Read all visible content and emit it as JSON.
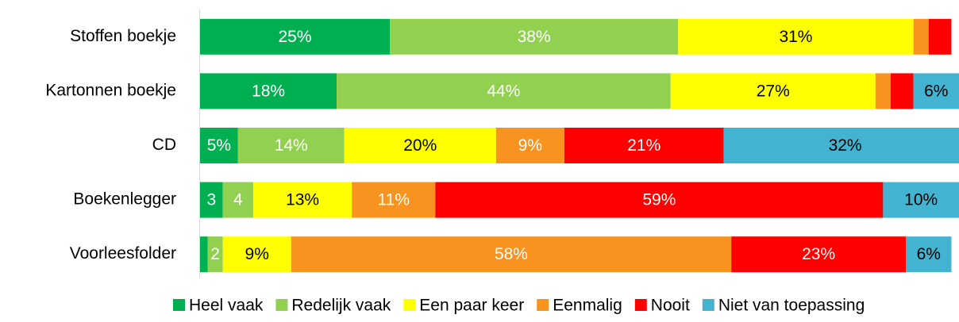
{
  "chart_data": {
    "type": "stacked-bar-horizontal",
    "categories": [
      "Stoffen boekje",
      "Kartonnen boekje",
      "CD",
      "Boekenlegger",
      "Voorleesfolder"
    ],
    "xlim": [
      0,
      100
    ],
    "legend": "bottom",
    "series": [
      {
        "name": "Heel vaak",
        "color": "#00b050",
        "label_color": "#ffffff",
        "values": [
          25,
          18,
          5,
          3,
          1
        ],
        "value_labels": [
          "25%",
          "18%",
          "5%",
          "3",
          null
        ]
      },
      {
        "name": "Redelijk vaak",
        "color": "#92d050",
        "label_color": "#ffffff",
        "values": [
          38,
          44,
          14,
          4,
          2
        ],
        "value_labels": [
          "38%",
          "44%",
          "14%",
          "4",
          "2"
        ]
      },
      {
        "name": "Een paar keer",
        "color": "#ffff00",
        "label_color": "#000000",
        "values": [
          31,
          27,
          20,
          13,
          9
        ],
        "value_labels": [
          "31%",
          "27%",
          "20%",
          "13%",
          "9%"
        ]
      },
      {
        "name": "Eenmalig",
        "color": "#f7931e",
        "label_color": "#ffffff",
        "values": [
          2,
          2,
          9,
          11,
          58
        ],
        "value_labels": [
          null,
          null,
          "9%",
          "11%",
          "58%"
        ]
      },
      {
        "name": "Nooit",
        "color": "#ff0000",
        "label_color": "#ffffff",
        "values": [
          3,
          3,
          21,
          59,
          23
        ],
        "value_labels": [
          null,
          null,
          "21%",
          "59%",
          "23%"
        ]
      },
      {
        "name": "Niet van toepassing",
        "color": "#42b3d0",
        "label_color": "#000000",
        "values": [
          0,
          6,
          32,
          10,
          6
        ],
        "value_labels": [
          null,
          "6%",
          "32%",
          "10%",
          "6%"
        ]
      }
    ]
  }
}
